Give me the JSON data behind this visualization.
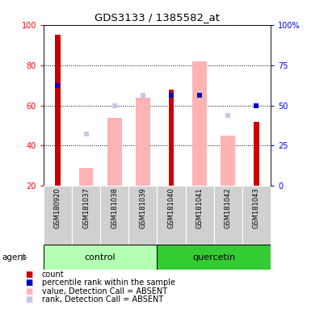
{
  "title": "GDS3133 / 1385582_at",
  "samples": [
    "GSM180920",
    "GSM181037",
    "GSM181038",
    "GSM181039",
    "GSM181040",
    "GSM181041",
    "GSM181042",
    "GSM181043"
  ],
  "red_bars": [
    95,
    0,
    0,
    0,
    68,
    0,
    0,
    52
  ],
  "blue_squares": [
    70,
    0,
    0,
    0,
    65,
    65,
    0,
    60
  ],
  "pink_bars": [
    0,
    29,
    54,
    64,
    0,
    82,
    45,
    0
  ],
  "lavender_squares": [
    0,
    46,
    60,
    65,
    0,
    66,
    55,
    0
  ],
  "ylim_left": [
    20,
    100
  ],
  "yticks_left": [
    20,
    40,
    60,
    80,
    100
  ],
  "yticks_right": [
    0,
    25,
    50,
    75,
    100
  ],
  "ytick_labels_right": [
    "0",
    "25",
    "50",
    "75",
    "100%"
  ],
  "control_color": "#b3ffb3",
  "quercetin_color": "#33cc33",
  "sample_bg_color": "#d0d0d0",
  "legend_items": [
    {
      "label": "count",
      "color": "#cc0000"
    },
    {
      "label": "percentile rank within the sample",
      "color": "#0000cc"
    },
    {
      "label": "value, Detection Call = ABSENT",
      "color": "#ffb3b3"
    },
    {
      "label": "rank, Detection Call = ABSENT",
      "color": "#c8c8e8"
    }
  ]
}
